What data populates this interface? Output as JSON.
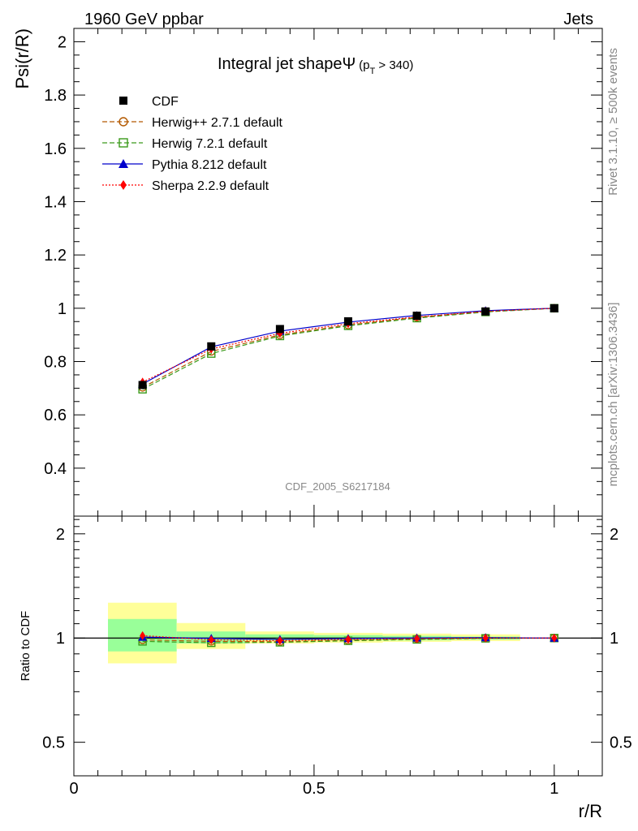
{
  "header": {
    "left": "1960 GeV ppbar",
    "right": "Jets"
  },
  "side_labels": {
    "rivet": "Rivet 3.1.10, ≥ 500k events",
    "mcplots": "mcplots.cern.ch [arXiv:1306.3436]"
  },
  "chart_data": [
    {
      "type": "line",
      "title": "Integral jet shapeΨ",
      "title_sub": "(p",
      "title_subscript": "T",
      "title_tail": " > 340)",
      "ylabel": "Psi(r/R)",
      "xlabel": "r/R",
      "analysis": "CDF_2005_S6217184",
      "xlim": [
        0,
        1.1
      ],
      "ylim": [
        0.22,
        2.05
      ],
      "yticks": [
        "0.4",
        "0.6",
        "0.8",
        "1",
        "1.2",
        "1.4",
        "1.6",
        "1.8",
        "2"
      ],
      "x": [
        0.143,
        0.286,
        0.429,
        0.571,
        0.714,
        0.857,
        1.0
      ],
      "series": [
        {
          "name": "CDF",
          "color": "#000000",
          "marker": "square-filled",
          "values": [
            0.712,
            0.857,
            0.922,
            0.951,
            0.972,
            0.988,
            1.0
          ]
        },
        {
          "name": "Herwig++ 2.7.1 default",
          "color": "#b35900",
          "marker": "circle-open",
          "values": [
            0.703,
            0.838,
            0.9,
            0.937,
            0.966,
            0.988,
            1.0
          ]
        },
        {
          "name": "Herwig 7.2.1 default",
          "color": "#3a9a1a",
          "marker": "square-open",
          "values": [
            0.696,
            0.83,
            0.896,
            0.934,
            0.963,
            0.986,
            1.0
          ]
        },
        {
          "name": "Pythia 8.212 default",
          "color": "#0000cc",
          "marker": "triangle-filled",
          "values": [
            0.716,
            0.855,
            0.914,
            0.948,
            0.973,
            0.991,
            1.0
          ]
        },
        {
          "name": "Sherpa 2.2.9 default",
          "color": "#ff0000",
          "marker": "diamond-filled",
          "values": [
            0.723,
            0.847,
            0.906,
            0.942,
            0.967,
            0.988,
            1.0
          ]
        }
      ]
    },
    {
      "type": "line",
      "title": "",
      "ylabel": "Ratio to CDF",
      "xlabel": "r/R",
      "xlim": [
        0,
        1.1
      ],
      "ylim": [
        0.4,
        2.25
      ],
      "scale": "log",
      "yticks": [
        "0.5",
        "1",
        "2"
      ],
      "xticks": [
        "0",
        "0.5",
        "1"
      ],
      "bands": {
        "bins": [
          [
            0.071,
            0.214
          ],
          [
            0.214,
            0.357
          ],
          [
            0.357,
            0.5
          ],
          [
            0.5,
            0.643
          ],
          [
            0.643,
            0.786
          ],
          [
            0.786,
            0.929
          ]
        ],
        "inner": [
          [
            0.915,
            1.135
          ],
          [
            0.965,
            1.045
          ],
          [
            0.985,
            1.025
          ],
          [
            0.985,
            1.02
          ],
          [
            0.985,
            1.015
          ],
          [
            0.99,
            1.01
          ]
        ],
        "outer": [
          [
            0.845,
            1.265
          ],
          [
            0.93,
            1.105
          ],
          [
            0.965,
            1.045
          ],
          [
            0.97,
            1.035
          ],
          [
            0.975,
            1.03
          ],
          [
            0.98,
            1.025
          ]
        ]
      },
      "series": [
        {
          "name": "Herwig++ 2.7.1 default",
          "values": [
            0.988,
            0.978,
            0.976,
            0.985,
            0.994,
            1.0,
            1.0
          ]
        },
        {
          "name": "Herwig 7.2.1 default",
          "values": [
            0.978,
            0.969,
            0.972,
            0.982,
            0.991,
            0.998,
            1.0
          ]
        },
        {
          "name": "Pythia 8.212 default",
          "values": [
            1.006,
            0.998,
            0.991,
            0.997,
            1.001,
            1.003,
            1.0
          ]
        },
        {
          "name": "Sherpa 2.2.9 default",
          "values": [
            1.016,
            0.988,
            0.983,
            0.991,
            0.995,
            1.0,
            1.0
          ]
        }
      ]
    }
  ]
}
